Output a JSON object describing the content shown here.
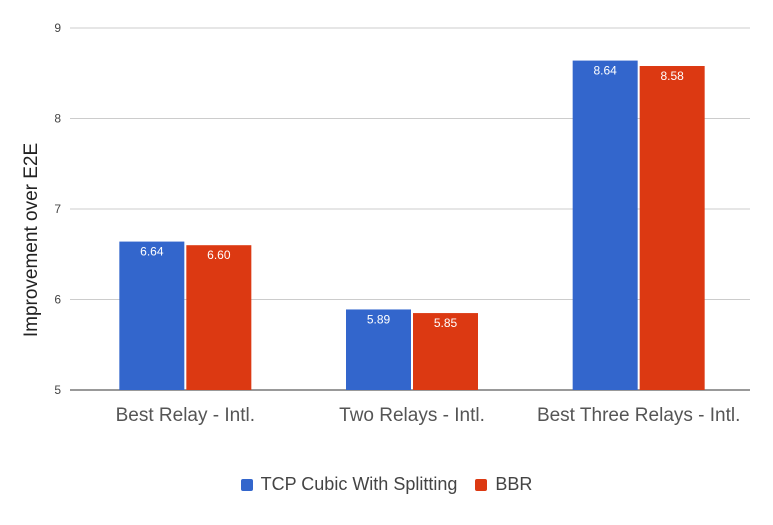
{
  "chart_data": {
    "type": "bar",
    "title": "",
    "xlabel": "",
    "ylabel": "Improvement over E2E",
    "ylim": [
      5,
      9
    ],
    "yticks": [
      5,
      6,
      7,
      8,
      9
    ],
    "grid": true,
    "legend_position": "bottom",
    "categories": [
      "Best Relay - Intl.",
      "Two Relays - Intl.",
      "Best Three Relays - Intl."
    ],
    "series": [
      {
        "name": "TCP Cubic With Splitting",
        "color": "#3366cc",
        "values": [
          6.64,
          5.89,
          8.64
        ],
        "labels": [
          "6.64",
          "5.89",
          "8.64"
        ]
      },
      {
        "name": "BBR",
        "color": "#dc3912",
        "values": [
          6.6,
          5.85,
          8.58
        ],
        "labels": [
          "6.60",
          "5.85",
          "8.58"
        ]
      }
    ]
  }
}
